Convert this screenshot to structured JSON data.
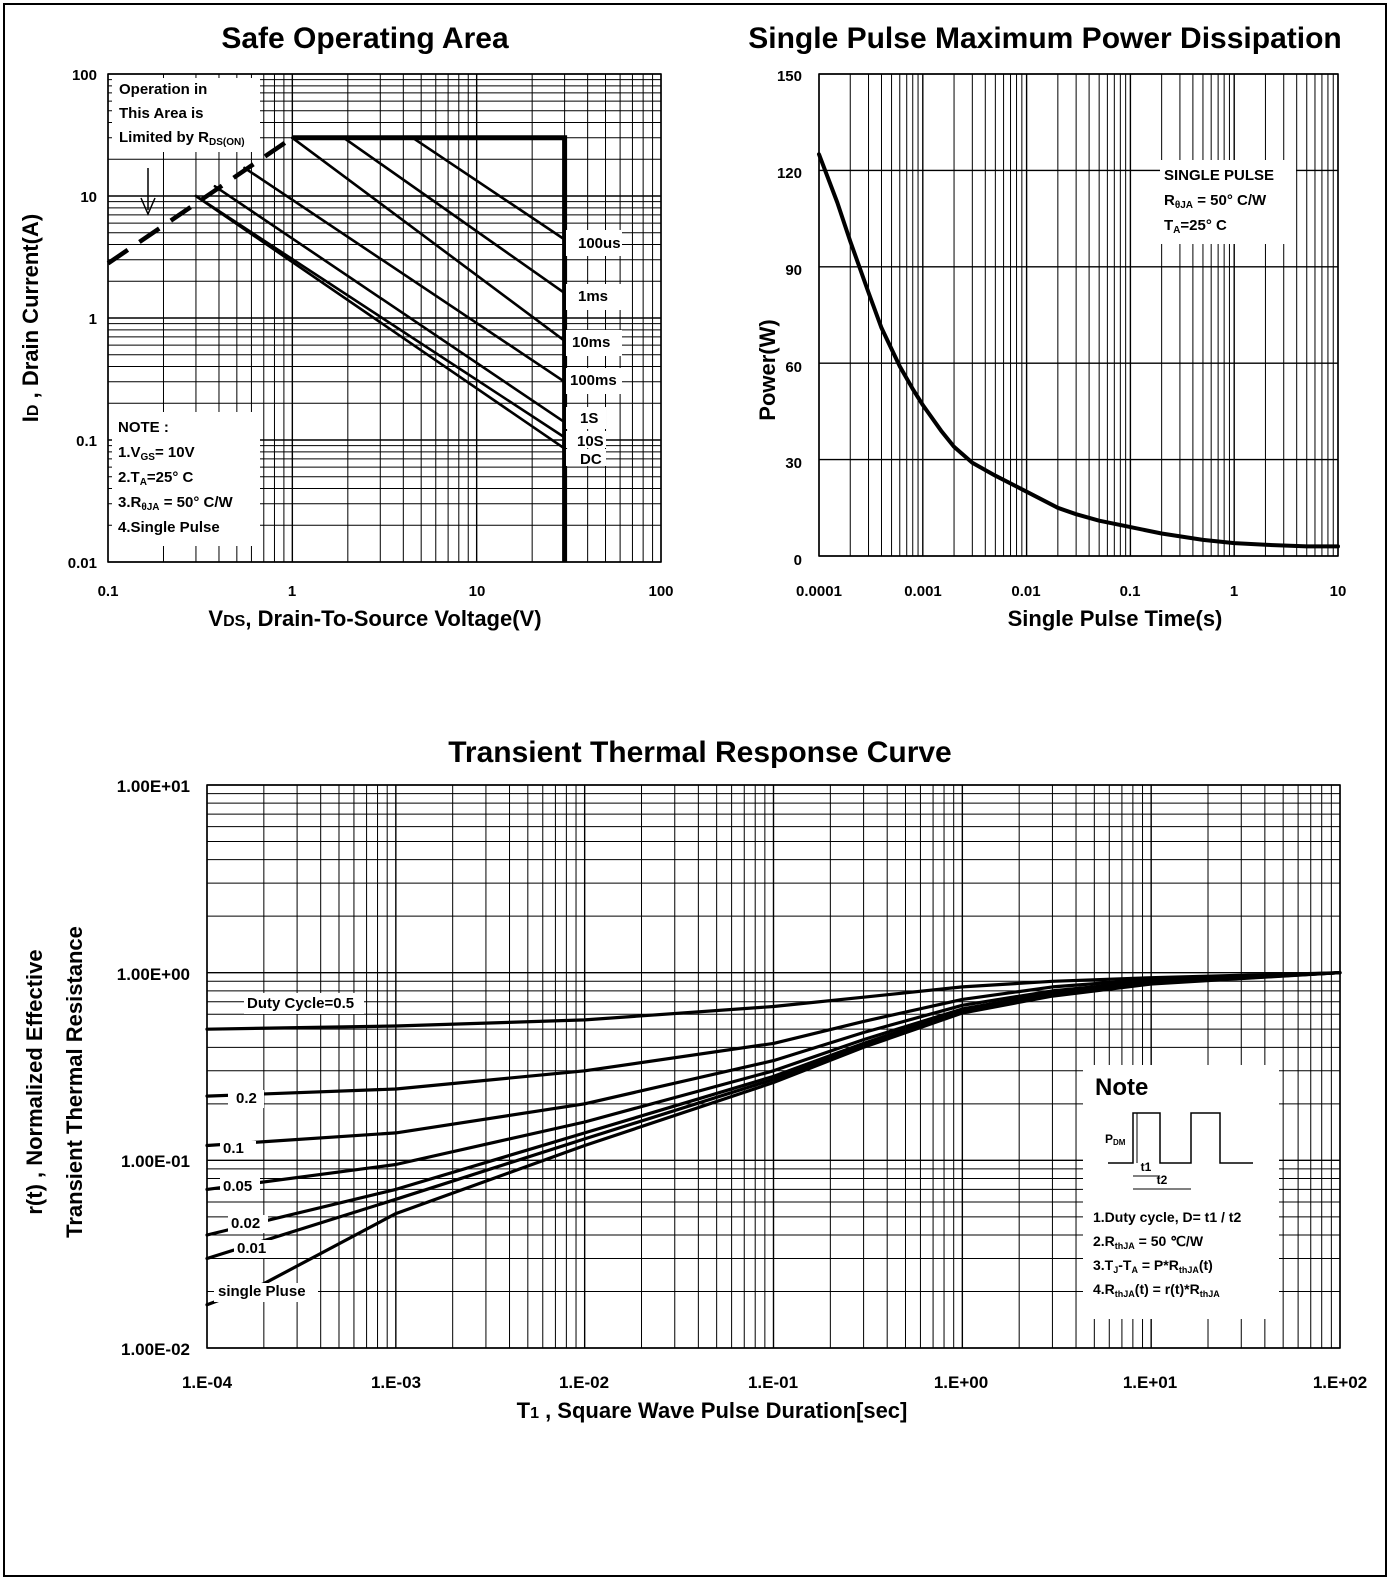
{
  "colors": {
    "ink": "#000000",
    "paper": "#ffffff"
  },
  "chart_data": [
    {
      "id": "soa",
      "type": "line",
      "title": "Safe Operating Area",
      "xlabel_main": "V",
      "xlabel_sub": "DS",
      "xlabel_rest": ", Drain-To-Source Voltage(V)",
      "ylabel_main": "I",
      "ylabel_sub": "D",
      "ylabel_rest": " , Drain Current(A)",
      "xscale": "log",
      "yscale": "log",
      "xlim": [
        0.1,
        100
      ],
      "ylim": [
        0.01,
        100
      ],
      "xticks": [
        "0.1",
        "1",
        "10",
        "100"
      ],
      "yticks": [
        "0.01",
        "0.1",
        "1",
        "10",
        "100"
      ],
      "grid": true,
      "annotation_limit": {
        "line1": "Operation in",
        "line2": "This Area is",
        "line3": "Limited by R",
        "sub": "DS(ON)"
      },
      "note": {
        "head": "NOTE :",
        "n1a": "1.V",
        "n1sub": "GS",
        "n1b": "= 10V",
        "n2a": "2.T",
        "n2sub": "A",
        "n2b": "=25° C",
        "n3a": "3.R",
        "n3sub": "θJA",
        "n3b": " = 50° C/W",
        "n4": "4.Single Pulse"
      },
      "rds_on_limit": [
        [
          0.1,
          2.8
        ],
        [
          1.0,
          30
        ]
      ],
      "current_limit": 30,
      "voltage_limit": 30,
      "series": [
        {
          "name": "100us",
          "x": [
            1.0,
            4.5,
            30
          ],
          "y": [
            30,
            30,
            4.4
          ]
        },
        {
          "name": "1ms",
          "x": [
            1.0,
            1.9,
            30
          ],
          "y": [
            30,
            30,
            1.6
          ]
        },
        {
          "name": "10ms",
          "x": [
            1.0,
            30
          ],
          "y": [
            30,
            0.65
          ]
        },
        {
          "name": "100ms",
          "x": [
            0.55,
            30
          ],
          "y": [
            17,
            0.3
          ]
        },
        {
          "name": "1S",
          "x": [
            0.38,
            30
          ],
          "y": [
            12,
            0.14
          ]
        },
        {
          "name": "10S",
          "x": [
            0.3,
            30
          ],
          "y": [
            10,
            0.105
          ]
        },
        {
          "name": "DC",
          "x": [
            0.3,
            30
          ],
          "y": [
            10,
            0.085
          ]
        }
      ]
    },
    {
      "id": "spmpd",
      "type": "line",
      "title": "Single Pulse Maximum Power Dissipation",
      "xlabel": "Single Pulse Time(s)",
      "ylabel": "Power(W)",
      "xscale": "log",
      "yscale": "linear",
      "xlim": [
        0.0001,
        10
      ],
      "ylim": [
        0,
        150
      ],
      "xticks": [
        "0.0001",
        "0.001",
        "0.01",
        "0.1",
        "1",
        "10"
      ],
      "yticks": [
        "0",
        "30",
        "60",
        "90",
        "120",
        "150"
      ],
      "grid": true,
      "legend": {
        "line1": "SINGLE PULSE",
        "l2a": "R",
        "l2sub": "θJA",
        "l2b": " = 50° C/W",
        "l3a": "T",
        "l3sub": "A",
        "l3b": "=25° C"
      },
      "series": [
        {
          "name": "single pulse",
          "x": [
            0.0001,
            0.00015,
            0.0002,
            0.0003,
            0.0004,
            0.0006,
            0.0008,
            0.001,
            0.0015,
            0.002,
            0.003,
            0.005,
            0.01,
            0.02,
            0.03,
            0.05,
            0.1,
            0.2,
            0.5,
            1,
            2,
            5,
            10
          ],
          "y": [
            125,
            110,
            98,
            82,
            71,
            59,
            52,
            47,
            39,
            34,
            29,
            25,
            20,
            15,
            13,
            11,
            9,
            7,
            5,
            4,
            3.5,
            3,
            3
          ]
        }
      ]
    },
    {
      "id": "ttr",
      "type": "line",
      "title": "Transient Thermal Response Curve",
      "xlabel_main": "T",
      "xlabel_sub": "1",
      "xlabel_rest": " , Square Wave Pulse Duration[sec]",
      "ylabel_line1": "r(t) , Normalized Effective",
      "ylabel_line2": "Transient Thermal Resistance",
      "xscale": "log",
      "yscale": "log",
      "xlim": [
        0.0001,
        100
      ],
      "ylim": [
        0.01,
        10
      ],
      "xticks": [
        "1.E-04",
        "1.E-03",
        "1.E-02",
        "1.E-01",
        "1.E+00",
        "1.E+01",
        "1.E+02"
      ],
      "yticks": [
        "1.00E-02",
        "1.00E-01",
        "1.00E+00",
        "1.00E+01"
      ],
      "grid": true,
      "note": {
        "head": "Note",
        "pdm": "P",
        "pdm_sub": "DM",
        "t1": "t1",
        "t2": "t2",
        "n1": "1.Duty cycle, D= t1 / t2",
        "n2a": "2.R",
        "n2sub": "thJA",
        "n2b": " = 50  ℃/W",
        "n3a": "3.T",
        "n3sub1": "J",
        "n3b": "-T",
        "n3sub2": "A",
        "n3c": " = P*R",
        "n3sub3": "thJA",
        "n3d": "(t)",
        "n4a": "4.R",
        "n4sub1": "thJA",
        "n4b": "(t) = r(t)*R",
        "n4sub2": "thJA"
      },
      "series": [
        {
          "name": "Duty Cycle=0.5",
          "x": [
            0.0001,
            0.001,
            0.01,
            0.1,
            0.3,
            1,
            3,
            10,
            100
          ],
          "y": [
            0.5,
            0.52,
            0.56,
            0.66,
            0.74,
            0.84,
            0.9,
            0.94,
            1.0
          ]
        },
        {
          "name": "0.2",
          "x": [
            0.0001,
            0.001,
            0.01,
            0.1,
            0.3,
            1,
            3,
            10,
            100
          ],
          "y": [
            0.22,
            0.24,
            0.3,
            0.42,
            0.55,
            0.72,
            0.84,
            0.92,
            1.0
          ]
        },
        {
          "name": "0.1",
          "x": [
            0.0001,
            0.001,
            0.01,
            0.1,
            0.3,
            1,
            3,
            10,
            100
          ],
          "y": [
            0.12,
            0.14,
            0.2,
            0.34,
            0.48,
            0.67,
            0.8,
            0.9,
            1.0
          ]
        },
        {
          "name": "0.05",
          "x": [
            0.0001,
            0.001,
            0.01,
            0.1,
            0.3,
            1,
            3,
            10,
            100
          ],
          "y": [
            0.07,
            0.095,
            0.16,
            0.3,
            0.44,
            0.64,
            0.78,
            0.89,
            1.0
          ]
        },
        {
          "name": "0.02",
          "x": [
            0.0001,
            0.001,
            0.01,
            0.1,
            0.3,
            1,
            3,
            10,
            100
          ],
          "y": [
            0.04,
            0.07,
            0.14,
            0.28,
            0.42,
            0.63,
            0.77,
            0.88,
            1.0
          ]
        },
        {
          "name": "0.01",
          "x": [
            0.0001,
            0.001,
            0.01,
            0.1,
            0.3,
            1,
            3,
            10,
            100
          ],
          "y": [
            0.03,
            0.062,
            0.13,
            0.27,
            0.41,
            0.62,
            0.76,
            0.88,
            1.0
          ]
        },
        {
          "name": "single Pluse",
          "x": [
            0.0001,
            0.0002,
            0.001,
            0.01,
            0.1,
            0.3,
            1,
            3,
            10,
            100
          ],
          "y": [
            0.017,
            0.022,
            0.052,
            0.12,
            0.26,
            0.4,
            0.61,
            0.75,
            0.87,
            1.0
          ]
        }
      ]
    }
  ]
}
